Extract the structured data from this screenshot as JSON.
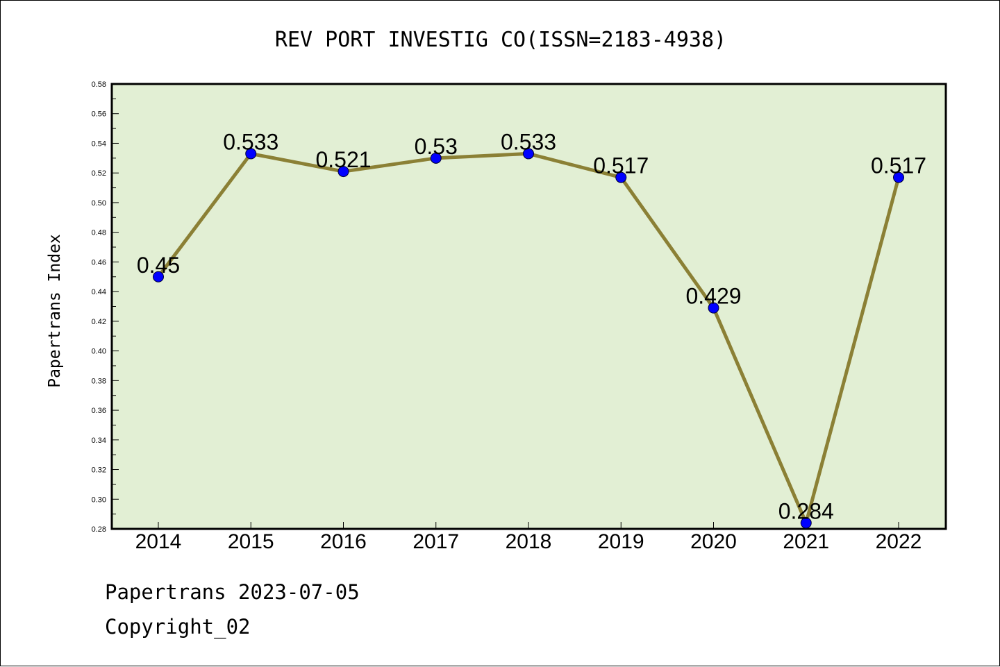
{
  "chart_data": {
    "type": "line",
    "title": "REV PORT INVESTIG CO(ISSN=2183-4938)",
    "xlabel": "",
    "ylabel": "Papertrans Index",
    "categories": [
      "2014",
      "2015",
      "2016",
      "2017",
      "2018",
      "2019",
      "2020",
      "2021",
      "2022"
    ],
    "values": [
      0.45,
      0.533,
      0.521,
      0.53,
      0.533,
      0.517,
      0.429,
      0.284,
      0.517
    ],
    "data_labels": [
      "0.45",
      "0.533",
      "0.521",
      "0.53",
      "0.533",
      "0.517",
      "0.429",
      "0.284",
      "0.517"
    ],
    "ylim": [
      0.28,
      0.58
    ],
    "yticks": [
      "0.28",
      "0.30",
      "0.32",
      "0.34",
      "0.36",
      "0.38",
      "0.40",
      "0.42",
      "0.44",
      "0.46",
      "0.48",
      "0.50",
      "0.52",
      "0.54",
      "0.56",
      "0.58"
    ],
    "grid": false,
    "legend": "none",
    "colors": {
      "plot_background": "#e2efd4",
      "line": "#8b8035",
      "marker": "#0000ff"
    }
  },
  "footer": {
    "line1": "Papertrans 2023-07-05",
    "line2": "Copyright_02"
  }
}
